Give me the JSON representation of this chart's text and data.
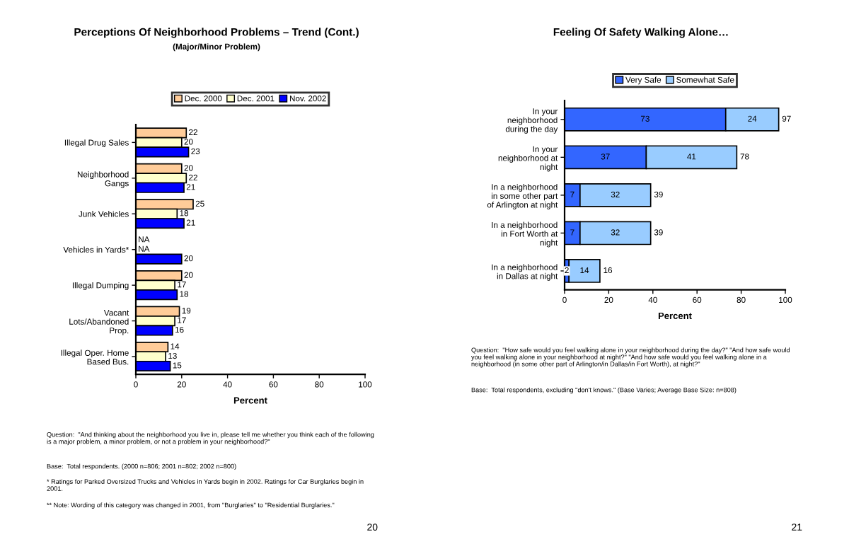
{
  "chart_data": [
    {
      "type": "bar",
      "orientation": "horizontal",
      "title": "Perceptions Of Neighborhood Problems – Trend (Cont.)",
      "subtitle": "(Major/Minor Problem)",
      "xlabel": "Percent",
      "categories": [
        "Illegal Drug Sales",
        "Neighborhood\nGangs",
        "Junk Vehicles",
        "Vehicles in Yards*",
        "Illegal Dumping",
        "Vacant\nLots/Abandoned\nProp.",
        "Illegal Oper. Home\nBased Bus."
      ],
      "series": [
        {
          "name": "Dec. 2000",
          "color": "#ffcc99",
          "values": [
            22,
            20,
            25,
            null,
            20,
            19,
            14
          ],
          "value_labels": [
            "22",
            "20",
            "25",
            "NA",
            "20",
            "19",
            "14"
          ]
        },
        {
          "name": "Dec. 2001",
          "color": "#ffffcc",
          "values": [
            20,
            22,
            18,
            null,
            17,
            17,
            13
          ],
          "value_labels": [
            "20",
            "22",
            "18",
            "NA",
            "17",
            "17",
            "13"
          ]
        },
        {
          "name": "Nov. 2002",
          "color": "#0000ff",
          "values": [
            23,
            21,
            21,
            20,
            18,
            16,
            15
          ],
          "value_labels": [
            "23",
            "21",
            "21",
            "20",
            "18",
            "16",
            "15"
          ]
        }
      ],
      "xlim": [
        0,
        100
      ],
      "xticks": [
        0,
        20,
        40,
        60,
        80,
        100
      ],
      "grid": false,
      "legend": "top",
      "annotations": [
        "Question:  \"And thinking about the neighborhood you live in, please tell me whether you think each of the following is a major problem, a minor problem, or not a problem in your neighborhood?\"",
        "Base:  Total respondents. (2000 n=806; 2001 n=802; 2002 n=800)",
        "* Ratings for Parked Oversized Trucks and Vehicles in Yards begin in 2002. Ratings for Car Burglaries begin in 2001.",
        "** Note: Wording of this category was changed in 2001, from \"Burglaries\" to \"Residential Burglaries.\"",
        "20"
      ]
    },
    {
      "type": "bar",
      "orientation": "horizontal",
      "stacked": true,
      "title": "Feeling Of Safety Walking Alone…",
      "xlabel": "Percent",
      "categories": [
        "In your\nneighborhood\nduring the day",
        "In your\nneighborhood at\nnight",
        "In a neighborhood\nin some other part\nof Arlington at night",
        "In a neighborhood\nin Fort Worth at\nnight",
        "In a neighborhood\nin Dallas at night"
      ],
      "series": [
        {
          "name": "Very Safe",
          "color": "#3366ff",
          "values": [
            73,
            37,
            7,
            7,
            2
          ]
        },
        {
          "name": "Somewhat Safe",
          "color": "#99ccff",
          "values": [
            24,
            41,
            32,
            32,
            14
          ]
        }
      ],
      "data_labels": true,
      "totals": [
        "97",
        "78",
        "39",
        "39",
        "16"
      ],
      "xlim": [
        0,
        100
      ],
      "xticks": [
        0,
        20,
        40,
        60,
        80,
        100
      ],
      "grid": false,
      "legend": "top",
      "annotations": [
        "Question:  \"How safe would you feel walking alone in your neighborhood during the day?\" \"And how safe would you feel walking alone in your neighborhood at night?\" \"And how safe would you feel walking alone in a neighborhood (in some other part of Arlington/in Dallas/in Fort Worth), at night?\"",
        "Base:  Total respondents, excluding \"don't knows.\" (Base Varies; Average Base Size: n=808)",
        "21"
      ]
    }
  ]
}
